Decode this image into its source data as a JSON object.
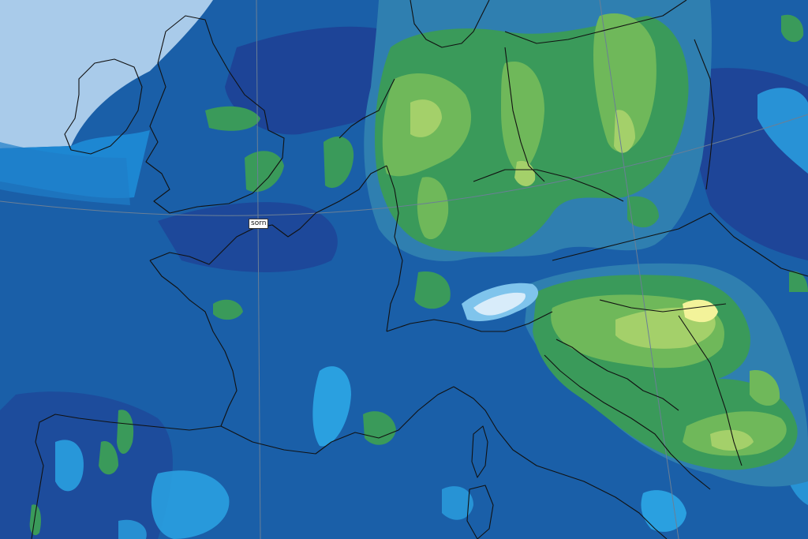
{
  "map": {
    "label": "sorn",
    "colors": {
      "sea_background": "#a9cbea",
      "atlantic_band": "#1d87d2",
      "base_field": "#1a5fa8",
      "low_value": "#2aa0e0",
      "medium_value": "#2f7fb0",
      "green_low": "#3a9a5a",
      "green_mid": "#6fb85a",
      "green_high": "#a4d06a",
      "yellow_peak": "#f3f39a",
      "dark_blue": "#1f3f94",
      "coastline": "#111111",
      "graticule": "#6a7f96"
    }
  }
}
